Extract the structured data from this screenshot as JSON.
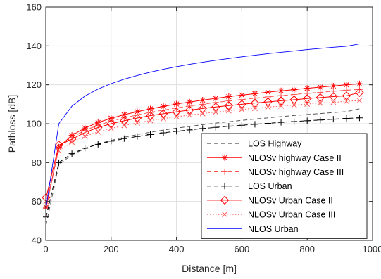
{
  "chart_data": {
    "type": "line",
    "title": "",
    "xlabel": "Distance [m]",
    "ylabel": "Pathloss [dB]",
    "xlim": [
      0,
      1000
    ],
    "ylim": [
      40,
      160
    ],
    "xticks": [
      0,
      200,
      400,
      600,
      800,
      1000
    ],
    "yticks": [
      40,
      60,
      80,
      100,
      120,
      140,
      160
    ],
    "xtick_labels": [
      "0",
      "200",
      "400",
      "600",
      "800",
      "1000"
    ],
    "ytick_labels": [
      "40",
      "60",
      "80",
      "100",
      "120",
      "140",
      "160"
    ],
    "grid": true,
    "legend_position": "bottom-right",
    "x": [
      1,
      40,
      80,
      120,
      160,
      200,
      240,
      280,
      320,
      360,
      400,
      440,
      480,
      520,
      560,
      600,
      640,
      680,
      720,
      760,
      800,
      840,
      880,
      920,
      960
    ],
    "series": [
      {
        "name": "LOS Highway",
        "color": "#555555",
        "line_style": "dashed",
        "marker": "none",
        "values": [
          48.0,
          79.0,
          84.0,
          87.2,
          89.6,
          91.4,
          93.0,
          94.4,
          95.6,
          96.7,
          97.7,
          98.6,
          99.5,
          100.3,
          101.0,
          101.7,
          102.4,
          103.0,
          103.6,
          104.2,
          104.7,
          105.2,
          105.7,
          106.2,
          107.6
        ]
      },
      {
        "name": "NLOSv highway Case II",
        "color": "#ff0000",
        "line_style": "solid",
        "marker": "star",
        "values": [
          57.0,
          88.0,
          94.0,
          97.8,
          100.6,
          102.8,
          104.6,
          106.2,
          107.6,
          108.9,
          110.1,
          111.1,
          112.1,
          113.0,
          113.9,
          114.7,
          115.4,
          116.2,
          116.9,
          117.5,
          118.2,
          118.8,
          119.4,
          120.0,
          120.5
        ]
      },
      {
        "name": "NLOSv highway Case III",
        "color": "#ff5555",
        "line_style": "dashed",
        "marker": "plus",
        "values": [
          56.5,
          87.5,
          93.0,
          96.6,
          99.2,
          101.3,
          103.0,
          104.5,
          105.8,
          107.0,
          108.1,
          109.1,
          110.0,
          110.9,
          111.7,
          112.4,
          113.1,
          113.8,
          114.4,
          115.0,
          115.6,
          116.1,
          116.7,
          117.2,
          117.6
        ]
      },
      {
        "name": "LOS Urban",
        "color": "#000000",
        "line_style": "dashed",
        "marker": "plus",
        "values": [
          52.0,
          80.0,
          84.6,
          87.4,
          89.4,
          91.0,
          92.3,
          93.4,
          94.4,
          95.3,
          96.1,
          96.8,
          97.5,
          98.1,
          98.7,
          99.2,
          99.7,
          100.2,
          100.7,
          101.1,
          101.5,
          101.9,
          102.3,
          102.7,
          103.0
        ]
      },
      {
        "name": "NLOSv Urban Case II",
        "color": "#ff0000",
        "line_style": "solid",
        "marker": "diamond",
        "values": [
          62.0,
          89.0,
          92.0,
          95.5,
          98.0,
          100.0,
          101.5,
          102.9,
          104.1,
          105.1,
          106.1,
          107.0,
          107.8,
          108.6,
          109.3,
          110.0,
          110.6,
          111.2,
          111.8,
          112.3,
          112.9,
          113.4,
          113.9,
          114.3,
          116.0
        ]
      },
      {
        "name": "NLOSv Urban Case III",
        "color": "#ff5555",
        "line_style": "dotted",
        "marker": "x",
        "values": [
          60.0,
          86.0,
          90.5,
          93.5,
          95.8,
          97.6,
          99.1,
          100.4,
          101.6,
          102.6,
          103.6,
          104.4,
          105.2,
          106.0,
          106.7,
          107.3,
          107.9,
          108.5,
          109.1,
          109.6,
          110.1,
          110.6,
          111.0,
          111.5,
          111.9
        ]
      },
      {
        "name": "NLOS Urban",
        "color": "#0000ff",
        "line_style": "solid",
        "marker": "none",
        "values": [
          57.0,
          100.0,
          109.0,
          114.2,
          117.8,
          120.6,
          122.9,
          124.8,
          126.5,
          128.0,
          129.3,
          130.5,
          131.6,
          132.6,
          133.5,
          134.4,
          135.2,
          136.0,
          136.7,
          137.4,
          138.1,
          138.7,
          139.3,
          139.8,
          141.0
        ]
      }
    ]
  }
}
